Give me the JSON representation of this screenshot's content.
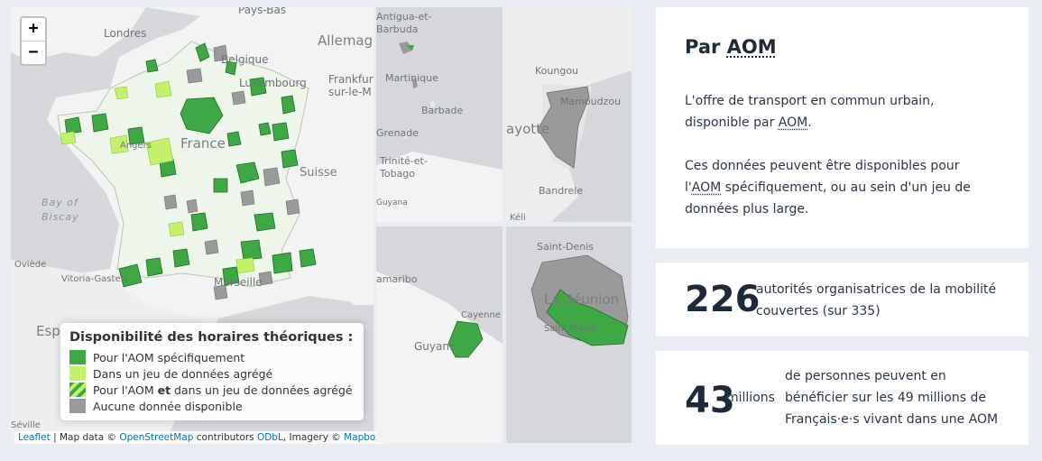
{
  "map": {
    "zoom_in": "+",
    "zoom_out": "−",
    "places": {
      "pays_bas": "Pays-Bas",
      "londres": "Londres",
      "allemagne": "Allemag",
      "belgique": "Belgique",
      "luxembourg": "Luxembourg",
      "frankfurt": "Frankfurt",
      "sur_le_m": "sur-le-M",
      "france": "France",
      "suisse": "Suisse",
      "angers": "Angers",
      "bay": "Bay of",
      "biscay": "Biscay",
      "oviede": "Oviède",
      "vitoria": "Vitoria-Gasteiz",
      "marseille": "Marseille",
      "espagne": "Espa",
      "seville": "Séville"
    },
    "inset_antilles": {
      "antigua": "Antigua-et-",
      "barbuda": "Barbuda",
      "martinique": "Martinique",
      "barbade": "Barbade",
      "grenade": "Grenade",
      "trinite": "Trinité-et-",
      "tobago": "Tobago",
      "guyana": "Guyana"
    },
    "inset_mayotte": {
      "koungou": "Koungou",
      "mamoudzou": "Mamoudzou",
      "mayotte": "ayotte",
      "bandrele": "Bandrele",
      "keli": "Kéli"
    },
    "inset_guyane": {
      "paramaribo": "amaribo",
      "cayenne": "Cayenne",
      "guyane": "Guyane"
    },
    "inset_reunion": {
      "saint_denis": "Saint-Denis",
      "la_reunion": "La Réunion",
      "saint_pierre": "Saint-Pierre"
    },
    "legend": {
      "title": "Disponibilité des horaires théoriques :",
      "items": [
        {
          "label": "Pour l'AOM spécifiquement",
          "color": "#3ea845"
        },
        {
          "label": "Dans un jeu de données agrégé",
          "color": "#c2f26a"
        },
        {
          "label_pre": "Pour l'AOM ",
          "label_bold": "et",
          "label_post": " dans un jeu de données agrégé",
          "color": "#3ea845"
        },
        {
          "label": "Aucune donnée disponible",
          "color": "#9a9a9a"
        }
      ]
    },
    "attribution": {
      "leaflet": "Leaflet",
      "map_data": " | Map data © ",
      "osm": "OpenStreetMap",
      "contributors": " contributors ",
      "odbl": "ODbL",
      "imagery": ", Imagery © ",
      "mapbox": "Mapbox"
    }
  },
  "panel": {
    "title_pre": "Par ",
    "title_abbr": "AOM",
    "desc1_pre": "L'offre de transport en commun urbain, disponible par ",
    "desc1_abbr": "AOM",
    "desc1_post": ".",
    "desc2_pre": "Ces données peuvent être disponibles pour l'",
    "desc2_abbr": "AOM",
    "desc2_post": " spécifiquement, ou au sein d'un jeu de données plus large.",
    "stat1_num": "226",
    "stat1_text": "autorités organisatrices de la mobilité couvertes (sur 335)",
    "stat2_num": "43",
    "stat2_unit": "millions",
    "stat2_text": "de personnes peuvent en bénéficier sur les 49 millions de Français·e·s vivant dans une AOM"
  },
  "colors": {
    "specific": "#3ea845",
    "aggregated": "#c2f26a",
    "none": "#9a9a9a",
    "land": "#f3f3f3",
    "sea": "#d5d7da",
    "heading": "#1e2a3a"
  }
}
